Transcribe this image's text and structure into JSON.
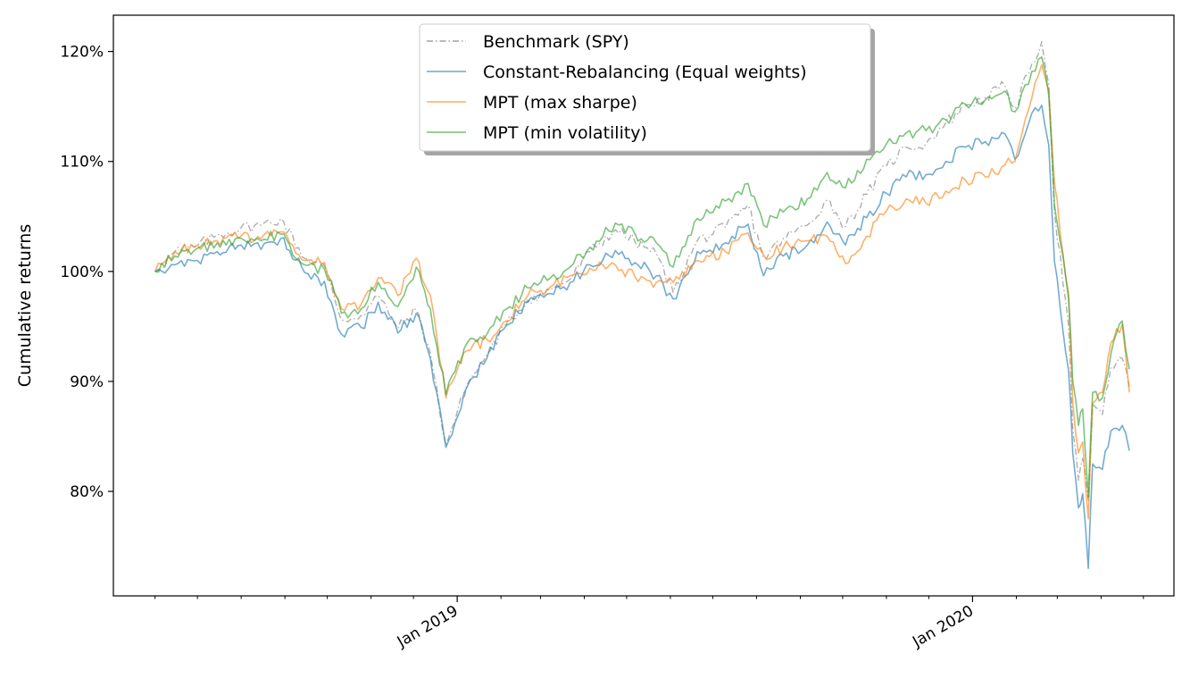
{
  "chart_data": {
    "type": "line",
    "ylabel": "Cumulative returns",
    "xlabel": "",
    "title": "",
    "y_unit": "%",
    "x_range": [
      "2018-06-05",
      "2020-04-21"
    ],
    "ylim": [
      70.5,
      123.3
    ],
    "y_ticks": [
      80,
      90,
      100,
      110,
      120
    ],
    "y_tick_labels": [
      "80%",
      "90%",
      "100%",
      "110%",
      "120%"
    ],
    "x_ticks": [
      {
        "date": "2019-01-01",
        "label": "Jan 2019"
      },
      {
        "date": "2020-01-01",
        "label": "Jan 2020"
      }
    ],
    "x_minor_ticks": [
      "2018-06-01",
      "2018-07-01",
      "2018-08-01",
      "2018-09-01",
      "2018-10-01",
      "2018-11-01",
      "2018-12-01",
      "2019-02-01",
      "2019-03-01",
      "2019-04-01",
      "2019-05-01",
      "2019-06-01",
      "2019-07-01",
      "2019-08-01",
      "2019-09-01",
      "2019-10-01",
      "2019-11-01",
      "2019-12-01",
      "2020-02-01",
      "2020-03-01",
      "2020-04-01",
      "2020-05-01"
    ],
    "grid": false,
    "legend_position": "top-center",
    "series": [
      {
        "name": "Benchmark (SPY)",
        "color": "#a0a0a0",
        "dash": "dash-dot",
        "points": [
          [
            "2018-06-01",
            100.0
          ],
          [
            "2018-06-15",
            101.8
          ],
          [
            "2018-07-01",
            102.3
          ],
          [
            "2018-07-15",
            103.3
          ],
          [
            "2018-08-01",
            104.0
          ],
          [
            "2018-08-15",
            104.2
          ],
          [
            "2018-08-29",
            104.8
          ],
          [
            "2018-09-15",
            101.2
          ],
          [
            "2018-09-29",
            100.5
          ],
          [
            "2018-10-11",
            95.6
          ],
          [
            "2018-10-25",
            96.0
          ],
          [
            "2018-11-06",
            97.8
          ],
          [
            "2018-11-20",
            94.8
          ],
          [
            "2018-12-03",
            96.5
          ],
          [
            "2018-12-13",
            92.5
          ],
          [
            "2018-12-24",
            84.2
          ],
          [
            "2019-01-08",
            89.7
          ],
          [
            "2019-01-22",
            92.4
          ],
          [
            "2019-02-05",
            95.2
          ],
          [
            "2019-02-20",
            97.4
          ],
          [
            "2019-03-08",
            98.3
          ],
          [
            "2019-03-22",
            99.3
          ],
          [
            "2019-04-05",
            101.8
          ],
          [
            "2019-04-23",
            103.8
          ],
          [
            "2019-05-07",
            102.7
          ],
          [
            "2019-05-22",
            101.6
          ],
          [
            "2019-06-03",
            98.1
          ],
          [
            "2019-06-20",
            102.8
          ],
          [
            "2019-07-10",
            104.0
          ],
          [
            "2019-07-26",
            106.0
          ],
          [
            "2019-08-06",
            101.2
          ],
          [
            "2019-08-20",
            103.0
          ],
          [
            "2019-09-06",
            104.2
          ],
          [
            "2019-09-20",
            106.5
          ],
          [
            "2019-10-03",
            104.1
          ],
          [
            "2019-10-18",
            107.0
          ],
          [
            "2019-11-01",
            109.6
          ],
          [
            "2019-11-15",
            111.3
          ],
          [
            "2019-11-29",
            111.6
          ],
          [
            "2019-12-13",
            113.5
          ],
          [
            "2019-12-27",
            115.1
          ],
          [
            "2020-01-10",
            115.8
          ],
          [
            "2020-01-24",
            116.9
          ],
          [
            "2020-01-31",
            114.8
          ],
          [
            "2020-02-12",
            118.9
          ],
          [
            "2020-02-19",
            120.9
          ],
          [
            "2020-02-24",
            117.0
          ],
          [
            "2020-02-28",
            105.5
          ],
          [
            "2020-03-09",
            95.0
          ],
          [
            "2020-03-12",
            85.5
          ],
          [
            "2020-03-16",
            81.0
          ],
          [
            "2020-03-19",
            83.0
          ],
          [
            "2020-03-23",
            79.2
          ],
          [
            "2020-03-26",
            88.0
          ],
          [
            "2020-04-02",
            87.0
          ],
          [
            "2020-04-08",
            91.3
          ],
          [
            "2020-04-16",
            92.1
          ],
          [
            "2020-04-21",
            89.5
          ]
        ]
      },
      {
        "name": "Constant-Rebalancing (Equal weights)",
        "color": "#1f77b4",
        "dash": "solid",
        "points": [
          [
            "2018-06-01",
            100.0
          ],
          [
            "2018-06-15",
            100.6
          ],
          [
            "2018-07-01",
            101.0
          ],
          [
            "2018-07-15",
            101.8
          ],
          [
            "2018-08-01",
            102.4
          ],
          [
            "2018-08-15",
            102.0
          ],
          [
            "2018-08-29",
            103.0
          ],
          [
            "2018-09-15",
            99.9
          ],
          [
            "2018-09-29",
            99.1
          ],
          [
            "2018-10-11",
            94.3
          ],
          [
            "2018-10-25",
            94.9
          ],
          [
            "2018-11-06",
            97.2
          ],
          [
            "2018-11-20",
            94.4
          ],
          [
            "2018-12-03",
            96.2
          ],
          [
            "2018-12-13",
            92.1
          ],
          [
            "2018-12-24",
            84.0
          ],
          [
            "2019-01-08",
            89.5
          ],
          [
            "2019-01-22",
            92.1
          ],
          [
            "2019-02-05",
            95.1
          ],
          [
            "2019-02-20",
            97.2
          ],
          [
            "2019-03-08",
            98.0
          ],
          [
            "2019-03-22",
            99.0
          ],
          [
            "2019-04-05",
            100.6
          ],
          [
            "2019-04-23",
            101.9
          ],
          [
            "2019-05-07",
            100.8
          ],
          [
            "2019-05-22",
            99.6
          ],
          [
            "2019-06-03",
            97.5
          ],
          [
            "2019-06-20",
            101.8
          ],
          [
            "2019-07-10",
            102.6
          ],
          [
            "2019-07-26",
            104.3
          ],
          [
            "2019-08-06",
            99.6
          ],
          [
            "2019-08-20",
            101.4
          ],
          [
            "2019-09-06",
            102.4
          ],
          [
            "2019-09-20",
            104.5
          ],
          [
            "2019-10-03",
            102.4
          ],
          [
            "2019-10-18",
            104.9
          ],
          [
            "2019-11-01",
            107.1
          ],
          [
            "2019-11-15",
            108.6
          ],
          [
            "2019-11-29",
            108.8
          ],
          [
            "2019-12-13",
            110.0
          ],
          [
            "2019-12-27",
            111.3
          ],
          [
            "2020-01-10",
            111.8
          ],
          [
            "2020-01-24",
            112.5
          ],
          [
            "2020-01-31",
            110.2
          ],
          [
            "2020-02-12",
            114.4
          ],
          [
            "2020-02-19",
            115.1
          ],
          [
            "2020-02-24",
            111.5
          ],
          [
            "2020-02-28",
            100.9
          ],
          [
            "2020-03-09",
            91.0
          ],
          [
            "2020-03-12",
            83.5
          ],
          [
            "2020-03-16",
            78.5
          ],
          [
            "2020-03-19",
            79.8
          ],
          [
            "2020-03-23",
            73.0
          ],
          [
            "2020-03-26",
            82.5
          ],
          [
            "2020-04-02",
            82.0
          ],
          [
            "2020-04-08",
            85.5
          ],
          [
            "2020-04-16",
            86.0
          ],
          [
            "2020-04-21",
            83.7
          ]
        ]
      },
      {
        "name": "MPT (max sharpe)",
        "color": "#ff7f0e",
        "dash": "solid",
        "points": [
          [
            "2018-06-01",
            100.0
          ],
          [
            "2018-06-15",
            101.8
          ],
          [
            "2018-07-01",
            102.4
          ],
          [
            "2018-07-15",
            102.8
          ],
          [
            "2018-08-01",
            103.2
          ],
          [
            "2018-08-15",
            103.0
          ],
          [
            "2018-08-29",
            103.6
          ],
          [
            "2018-09-15",
            101.0
          ],
          [
            "2018-09-29",
            100.8
          ],
          [
            "2018-10-11",
            96.6
          ],
          [
            "2018-10-25",
            97.0
          ],
          [
            "2018-11-06",
            99.4
          ],
          [
            "2018-11-20",
            97.8
          ],
          [
            "2018-12-03",
            101.2
          ],
          [
            "2018-12-13",
            97.8
          ],
          [
            "2018-12-24",
            88.5
          ],
          [
            "2019-01-08",
            92.8
          ],
          [
            "2019-01-22",
            93.8
          ],
          [
            "2019-02-05",
            95.5
          ],
          [
            "2019-02-20",
            97.8
          ],
          [
            "2019-03-08",
            98.6
          ],
          [
            "2019-03-22",
            99.6
          ],
          [
            "2019-04-05",
            100.3
          ],
          [
            "2019-04-23",
            100.6
          ],
          [
            "2019-05-07",
            99.5
          ],
          [
            "2019-05-22",
            99.0
          ],
          [
            "2019-06-03",
            99.0
          ],
          [
            "2019-06-20",
            101.0
          ],
          [
            "2019-07-10",
            101.8
          ],
          [
            "2019-07-26",
            103.5
          ],
          [
            "2019-08-06",
            101.5
          ],
          [
            "2019-08-20",
            102.2
          ],
          [
            "2019-09-06",
            102.8
          ],
          [
            "2019-09-20",
            103.2
          ],
          [
            "2019-10-03",
            100.7
          ],
          [
            "2019-10-18",
            103.2
          ],
          [
            "2019-11-01",
            105.5
          ],
          [
            "2019-11-15",
            106.6
          ],
          [
            "2019-11-29",
            106.2
          ],
          [
            "2019-12-13",
            107.3
          ],
          [
            "2019-12-27",
            108.3
          ],
          [
            "2020-01-10",
            108.6
          ],
          [
            "2020-01-24",
            109.7
          ],
          [
            "2020-01-31",
            110.0
          ],
          [
            "2020-02-12",
            115.8
          ],
          [
            "2020-02-19",
            118.8
          ],
          [
            "2020-02-24",
            116.5
          ],
          [
            "2020-02-28",
            108.0
          ],
          [
            "2020-03-09",
            98.0
          ],
          [
            "2020-03-12",
            88.0
          ],
          [
            "2020-03-16",
            83.5
          ],
          [
            "2020-03-19",
            84.5
          ],
          [
            "2020-03-23",
            77.5
          ],
          [
            "2020-03-26",
            88.0
          ],
          [
            "2020-04-02",
            89.0
          ],
          [
            "2020-04-08",
            93.5
          ],
          [
            "2020-04-16",
            95.2
          ],
          [
            "2020-04-21",
            89.0
          ]
        ]
      },
      {
        "name": "MPT (min volatility)",
        "color": "#2ca02c",
        "dash": "solid",
        "points": [
          [
            "2018-06-01",
            100.0
          ],
          [
            "2018-06-15",
            101.4
          ],
          [
            "2018-07-01",
            102.1
          ],
          [
            "2018-07-15",
            102.6
          ],
          [
            "2018-08-01",
            103.0
          ],
          [
            "2018-08-15",
            102.8
          ],
          [
            "2018-08-29",
            103.4
          ],
          [
            "2018-09-15",
            100.6
          ],
          [
            "2018-09-29",
            100.2
          ],
          [
            "2018-10-11",
            96.2
          ],
          [
            "2018-10-25",
            96.6
          ],
          [
            "2018-11-06",
            99.0
          ],
          [
            "2018-11-20",
            96.8
          ],
          [
            "2018-12-03",
            100.4
          ],
          [
            "2018-12-13",
            96.6
          ],
          [
            "2018-12-24",
            88.8
          ],
          [
            "2019-01-08",
            93.5
          ],
          [
            "2019-01-22",
            94.3
          ],
          [
            "2019-02-05",
            96.6
          ],
          [
            "2019-02-20",
            98.5
          ],
          [
            "2019-03-08",
            99.4
          ],
          [
            "2019-03-22",
            100.4
          ],
          [
            "2019-04-05",
            102.2
          ],
          [
            "2019-04-23",
            104.4
          ],
          [
            "2019-05-07",
            103.4
          ],
          [
            "2019-05-22",
            102.6
          ],
          [
            "2019-06-03",
            100.4
          ],
          [
            "2019-06-20",
            104.8
          ],
          [
            "2019-07-10",
            106.4
          ],
          [
            "2019-07-26",
            108.0
          ],
          [
            "2019-08-06",
            104.2
          ],
          [
            "2019-08-20",
            105.4
          ],
          [
            "2019-09-06",
            106.6
          ],
          [
            "2019-09-20",
            109.0
          ],
          [
            "2019-10-03",
            107.6
          ],
          [
            "2019-10-18",
            110.2
          ],
          [
            "2019-11-01",
            111.6
          ],
          [
            "2019-11-15",
            112.6
          ],
          [
            "2019-11-29",
            112.8
          ],
          [
            "2019-12-13",
            113.8
          ],
          [
            "2019-12-27",
            115.2
          ],
          [
            "2020-01-10",
            115.6
          ],
          [
            "2020-01-24",
            116.4
          ],
          [
            "2020-01-31",
            114.5
          ],
          [
            "2020-02-12",
            118.2
          ],
          [
            "2020-02-19",
            119.5
          ],
          [
            "2020-02-24",
            116.0
          ],
          [
            "2020-02-28",
            106.0
          ],
          [
            "2020-03-09",
            97.5
          ],
          [
            "2020-03-12",
            90.0
          ],
          [
            "2020-03-16",
            86.0
          ],
          [
            "2020-03-19",
            87.5
          ],
          [
            "2020-03-23",
            79.5
          ],
          [
            "2020-03-26",
            89.0
          ],
          [
            "2020-04-02",
            88.5
          ],
          [
            "2020-04-08",
            92.5
          ],
          [
            "2020-04-16",
            95.5
          ],
          [
            "2020-04-21",
            91.1
          ]
        ]
      }
    ]
  }
}
